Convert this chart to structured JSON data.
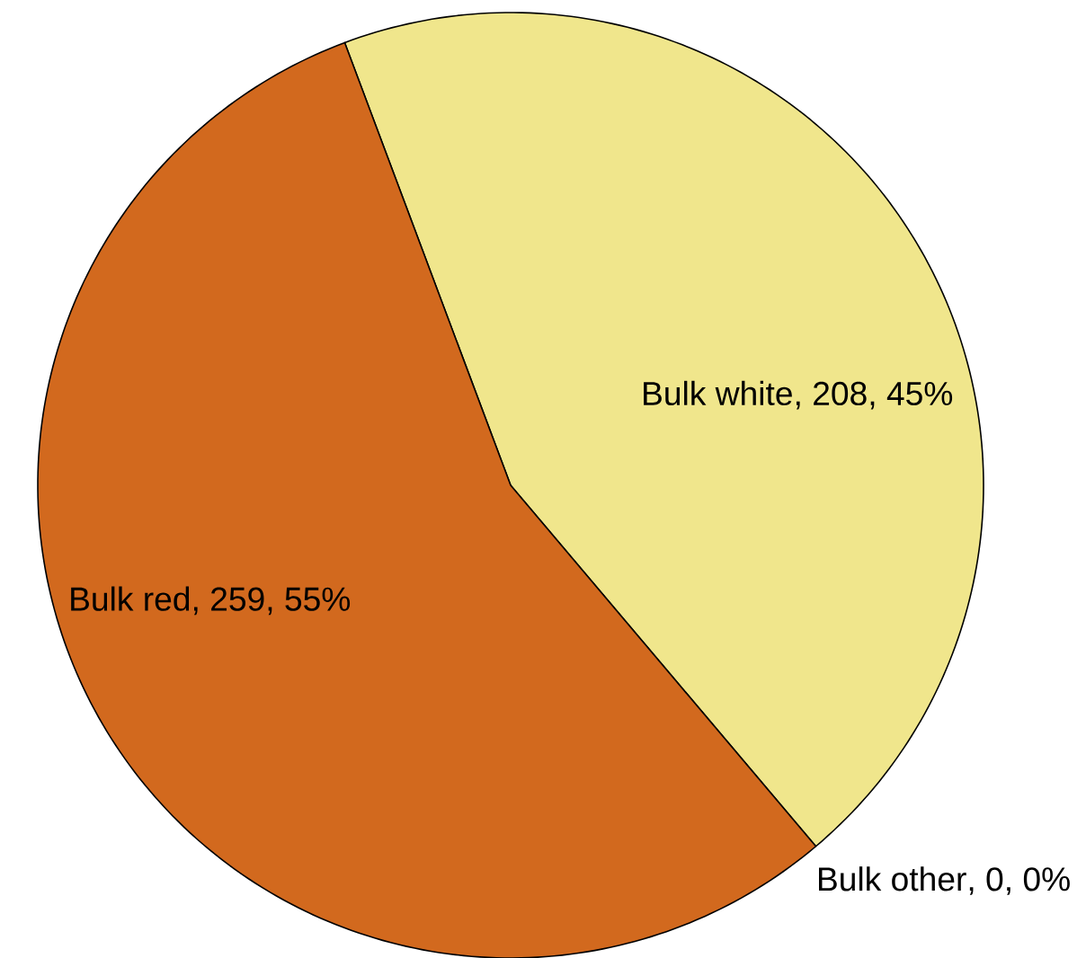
{
  "chart_data": {
    "type": "pie",
    "categories": [
      "Bulk white",
      "Bulk red",
      "Bulk other"
    ],
    "values": [
      208,
      259,
      0
    ],
    "colors": [
      "#f0e68c",
      "#d2691e",
      null
    ],
    "value_labels": [
      ", 208, 45%",
      ", 259, 55%",
      ", 0, 0%"
    ]
  }
}
